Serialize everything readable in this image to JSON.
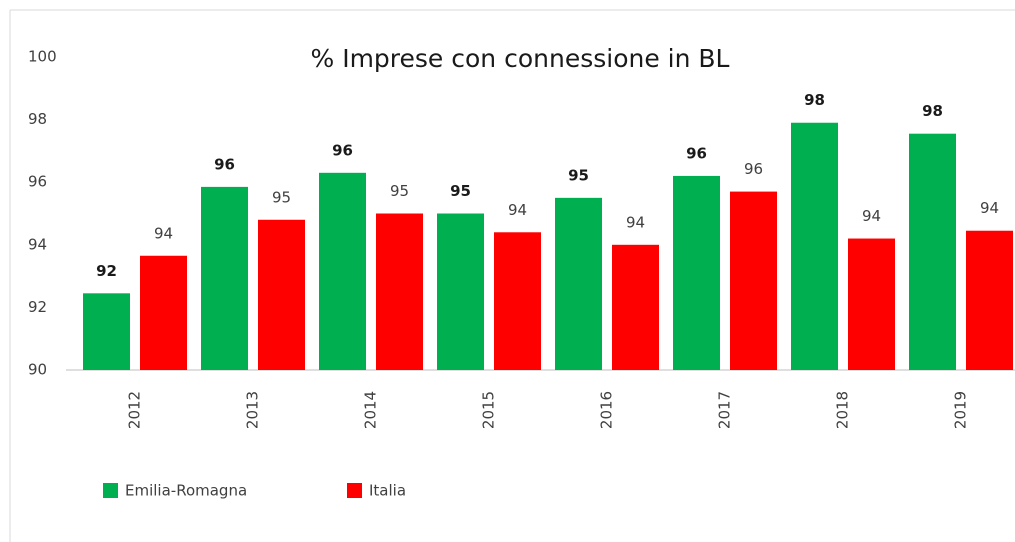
{
  "chart_data": {
    "type": "bar",
    "title": "% Imprese con connessione in BL",
    "categories": [
      "2012",
      "2013",
      "2014",
      "2015",
      "2016",
      "2017",
      "2018",
      "2019"
    ],
    "series": [
      {
        "name": "Emilia-Romagna",
        "color": "#00b050",
        "values": [
          92.45,
          95.85,
          96.3,
          95.0,
          95.5,
          96.2,
          97.9,
          97.55
        ],
        "value_labels": [
          "92",
          "96",
          "96",
          "95",
          "95",
          "96",
          "98",
          "98"
        ]
      },
      {
        "name": "Italia",
        "color": "#ff0000",
        "values": [
          93.65,
          94.8,
          95.0,
          94.4,
          94.0,
          95.7,
          94.2,
          94.45
        ],
        "value_labels": [
          "94",
          "95",
          "95",
          "94",
          "94",
          "96",
          "94",
          "94"
        ]
      }
    ],
    "ylim": [
      90,
      100
    ],
    "yticks": [
      90,
      92,
      94,
      96,
      98,
      100
    ],
    "grid": false,
    "legend": "bottom-left"
  }
}
